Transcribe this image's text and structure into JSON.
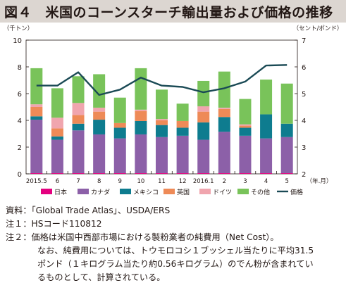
{
  "title": "図４　米国のコーンスターチ輸出量および価格の推移",
  "notes": [
    "資料：「Global Trade Atlas」、USDA/ERS",
    "注１：HSコード110812",
    "注２：価格は米国中西部市場における製粉業者の純費用（Net Cost）。",
    "なお、純費用については、トウモロコシ１ブッシェル当たりに平均31.5",
    "ポンド（１キログラム当たり約0.56キログラム）のでん粉が含まれてい",
    "るものとして、計算されている。"
  ],
  "colors": {
    "日本": "#e4007f",
    "カナダ": "#8c60a8",
    "メキシコ": "#0e7c8f",
    "英国": "#ee8a57",
    "ドイツ": "#f0a5ae",
    "その他": "#79c35a",
    "価格": "#1a4a55",
    "title_bg": "#dcd6d1"
  },
  "chart_data": {
    "type": "bar",
    "stacked": true,
    "categories": [
      "2015.5",
      "6",
      "7",
      "8",
      "9",
      "10",
      "11",
      "12",
      "2016.1",
      "2",
      "3",
      "4",
      "5"
    ],
    "xlabel_unit": "（年.月）",
    "ylabel_left": "（千トン）",
    "ylabel_right": "（セント/ポンド）",
    "ylim_left": [
      0,
      10
    ],
    "yticks_left": [
      0,
      2,
      4,
      6,
      8,
      10
    ],
    "ylim_right": [
      2,
      7
    ],
    "yticks_right": [
      2,
      3,
      4,
      5,
      6,
      7
    ],
    "grid": false,
    "legend_position": "bottom",
    "series": [
      {
        "name": "日本",
        "values": [
          0.05,
          0.05,
          0.05,
          0.05,
          0.05,
          0.05,
          0.05,
          0.05,
          0.05,
          0.05,
          0.05,
          0.05,
          0.05
        ]
      },
      {
        "name": "カナダ",
        "values": [
          4.0,
          2.5,
          3.2,
          2.9,
          2.6,
          2.9,
          2.7,
          2.8,
          2.5,
          3.1,
          2.8,
          2.6,
          2.7
        ]
      },
      {
        "name": "メキシコ",
        "values": [
          0.25,
          0.25,
          0.5,
          1.1,
          0.8,
          1.0,
          0.9,
          0.6,
          1.3,
          1.1,
          0.6,
          1.8,
          1.0
        ]
      },
      {
        "name": "英国",
        "values": [
          0.7,
          0.6,
          0.65,
          0.6,
          0.35,
          0.75,
          0.35,
          0.5,
          0.8,
          0.6,
          0.15,
          0.0,
          0.0
        ]
      },
      {
        "name": "ドイツ",
        "values": [
          0.2,
          0.8,
          0.9,
          0.3,
          0.0,
          0.1,
          0.1,
          0.0,
          0.4,
          0.1,
          0.1,
          0.0,
          0.0
        ]
      },
      {
        "name": "その他",
        "values": [
          2.7,
          2.2,
          2.0,
          2.5,
          1.9,
          3.1,
          2.2,
          1.3,
          1.9,
          2.7,
          1.9,
          2.6,
          3.0
        ]
      }
    ],
    "line_series": {
      "name": "価格",
      "axis": "right",
      "values": [
        5.3,
        5.3,
        5.8,
        4.95,
        5.15,
        5.6,
        5.3,
        5.25,
        5.05,
        5.2,
        5.45,
        6.05,
        6.07
      ]
    }
  }
}
